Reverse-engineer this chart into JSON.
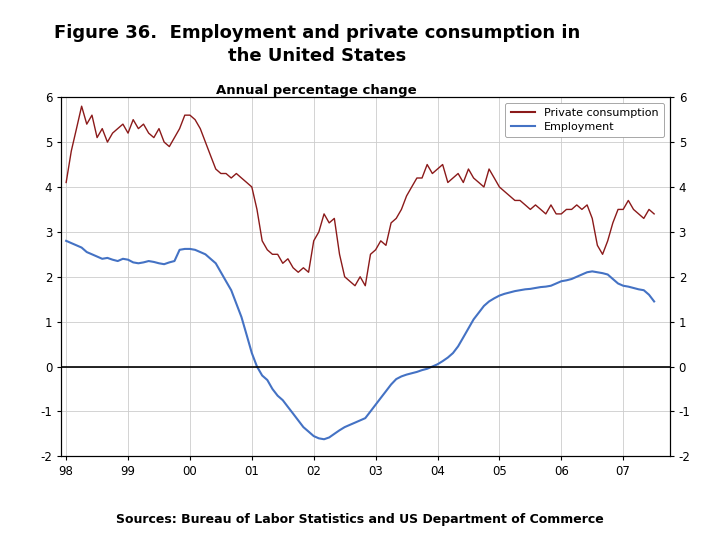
{
  "title_line1": "Figure 36.  Employment and private consumption in",
  "title_line2": "the United States",
  "subtitle": "Annual percentage change",
  "source": "Sources: Bureau of Labor Statistics and US Department of Commerce",
  "legend_labels": [
    "Private consumption",
    "Employment"
  ],
  "line_colors": [
    "#8B1A1A",
    "#4472C4"
  ],
  "ylim": [
    -2,
    6
  ],
  "yticks": [
    -2,
    -1,
    0,
    1,
    2,
    3,
    4,
    5,
    6
  ],
  "xlim_start": 1997.92,
  "xlim_end": 2007.75,
  "xtick_labels": [
    "98",
    "99",
    "00",
    "01",
    "02",
    "03",
    "04",
    "05",
    "06",
    "07"
  ],
  "xtick_positions": [
    1998,
    1999,
    2000,
    2001,
    2002,
    2003,
    2004,
    2005,
    2006,
    2007
  ],
  "background_color": "#FFFFFF",
  "grid_color": "#CCCCCC",
  "footer_bg": "#1F3864",
  "logo_bg": "#1F3864",
  "private_consumption": {
    "t": [
      1998.0,
      1998.083,
      1998.167,
      1998.25,
      1998.333,
      1998.417,
      1998.5,
      1998.583,
      1998.667,
      1998.75,
      1998.833,
      1998.917,
      1999.0,
      1999.083,
      1999.167,
      1999.25,
      1999.333,
      1999.417,
      1999.5,
      1999.583,
      1999.667,
      1999.75,
      1999.833,
      1999.917,
      2000.0,
      2000.083,
      2000.167,
      2000.25,
      2000.333,
      2000.417,
      2000.5,
      2000.583,
      2000.667,
      2000.75,
      2000.833,
      2000.917,
      2001.0,
      2001.083,
      2001.167,
      2001.25,
      2001.333,
      2001.417,
      2001.5,
      2001.583,
      2001.667,
      2001.75,
      2001.833,
      2001.917,
      2002.0,
      2002.083,
      2002.167,
      2002.25,
      2002.333,
      2002.417,
      2002.5,
      2002.583,
      2002.667,
      2002.75,
      2002.833,
      2002.917,
      2003.0,
      2003.083,
      2003.167,
      2003.25,
      2003.333,
      2003.417,
      2003.5,
      2003.583,
      2003.667,
      2003.75,
      2003.833,
      2003.917,
      2004.0,
      2004.083,
      2004.167,
      2004.25,
      2004.333,
      2004.417,
      2004.5,
      2004.583,
      2004.667,
      2004.75,
      2004.833,
      2004.917,
      2005.0,
      2005.083,
      2005.167,
      2005.25,
      2005.333,
      2005.417,
      2005.5,
      2005.583,
      2005.667,
      2005.75,
      2005.833,
      2005.917,
      2006.0,
      2006.083,
      2006.167,
      2006.25,
      2006.333,
      2006.417,
      2006.5,
      2006.583,
      2006.667,
      2006.75,
      2006.833,
      2006.917,
      2007.0,
      2007.083,
      2007.167,
      2007.25,
      2007.333,
      2007.417,
      2007.5
    ],
    "v": [
      4.1,
      4.8,
      5.3,
      5.8,
      5.4,
      5.6,
      5.1,
      5.3,
      5.0,
      5.2,
      5.3,
      5.4,
      5.2,
      5.5,
      5.3,
      5.4,
      5.2,
      5.1,
      5.3,
      5.0,
      4.9,
      5.1,
      5.3,
      5.6,
      5.6,
      5.5,
      5.3,
      5.0,
      4.7,
      4.4,
      4.3,
      4.3,
      4.2,
      4.3,
      4.2,
      4.1,
      4.0,
      3.5,
      2.8,
      2.6,
      2.5,
      2.5,
      2.3,
      2.4,
      2.2,
      2.1,
      2.2,
      2.1,
      2.8,
      3.0,
      3.4,
      3.2,
      3.3,
      2.5,
      2.0,
      1.9,
      1.8,
      2.0,
      1.8,
      2.5,
      2.6,
      2.8,
      2.7,
      3.2,
      3.3,
      3.5,
      3.8,
      4.0,
      4.2,
      4.2,
      4.5,
      4.3,
      4.4,
      4.5,
      4.1,
      4.2,
      4.3,
      4.1,
      4.4,
      4.2,
      4.1,
      4.0,
      4.4,
      4.2,
      4.0,
      3.9,
      3.8,
      3.7,
      3.7,
      3.6,
      3.5,
      3.6,
      3.5,
      3.4,
      3.6,
      3.4,
      3.4,
      3.5,
      3.5,
      3.6,
      3.5,
      3.6,
      3.3,
      2.7,
      2.5,
      2.8,
      3.2,
      3.5,
      3.5,
      3.7,
      3.5,
      3.4,
      3.3,
      3.5,
      3.4
    ]
  },
  "employment": {
    "t": [
      1998.0,
      1998.083,
      1998.167,
      1998.25,
      1998.333,
      1998.417,
      1998.5,
      1998.583,
      1998.667,
      1998.75,
      1998.833,
      1998.917,
      1999.0,
      1999.083,
      1999.167,
      1999.25,
      1999.333,
      1999.417,
      1999.5,
      1999.583,
      1999.667,
      1999.75,
      1999.833,
      1999.917,
      2000.0,
      2000.083,
      2000.167,
      2000.25,
      2000.333,
      2000.417,
      2000.5,
      2000.583,
      2000.667,
      2000.75,
      2000.833,
      2000.917,
      2001.0,
      2001.083,
      2001.167,
      2001.25,
      2001.333,
      2001.417,
      2001.5,
      2001.583,
      2001.667,
      2001.75,
      2001.833,
      2001.917,
      2002.0,
      2002.083,
      2002.167,
      2002.25,
      2002.333,
      2002.417,
      2002.5,
      2002.583,
      2002.667,
      2002.75,
      2002.833,
      2002.917,
      2003.0,
      2003.083,
      2003.167,
      2003.25,
      2003.333,
      2003.417,
      2003.5,
      2003.583,
      2003.667,
      2003.75,
      2003.833,
      2003.917,
      2004.0,
      2004.083,
      2004.167,
      2004.25,
      2004.333,
      2004.417,
      2004.5,
      2004.583,
      2004.667,
      2004.75,
      2004.833,
      2004.917,
      2005.0,
      2005.083,
      2005.167,
      2005.25,
      2005.333,
      2005.417,
      2005.5,
      2005.583,
      2005.667,
      2005.75,
      2005.833,
      2005.917,
      2006.0,
      2006.083,
      2006.167,
      2006.25,
      2006.333,
      2006.417,
      2006.5,
      2006.583,
      2006.667,
      2006.75,
      2006.833,
      2006.917,
      2007.0,
      2007.083,
      2007.167,
      2007.25,
      2007.333,
      2007.417,
      2007.5
    ],
    "v": [
      2.8,
      2.75,
      2.7,
      2.65,
      2.55,
      2.5,
      2.45,
      2.4,
      2.42,
      2.38,
      2.35,
      2.4,
      2.38,
      2.32,
      2.3,
      2.32,
      2.35,
      2.33,
      2.3,
      2.28,
      2.32,
      2.35,
      2.6,
      2.62,
      2.62,
      2.6,
      2.55,
      2.5,
      2.4,
      2.3,
      2.1,
      1.9,
      1.7,
      1.4,
      1.1,
      0.7,
      0.3,
      0.0,
      -0.2,
      -0.3,
      -0.5,
      -0.65,
      -0.75,
      -0.9,
      -1.05,
      -1.2,
      -1.35,
      -1.45,
      -1.55,
      -1.6,
      -1.62,
      -1.58,
      -1.5,
      -1.42,
      -1.35,
      -1.3,
      -1.25,
      -1.2,
      -1.15,
      -1.0,
      -0.85,
      -0.7,
      -0.55,
      -0.4,
      -0.28,
      -0.22,
      -0.18,
      -0.15,
      -0.12,
      -0.08,
      -0.05,
      0.0,
      0.05,
      0.12,
      0.2,
      0.3,
      0.45,
      0.65,
      0.85,
      1.05,
      1.2,
      1.35,
      1.45,
      1.52,
      1.58,
      1.62,
      1.65,
      1.68,
      1.7,
      1.72,
      1.73,
      1.75,
      1.77,
      1.78,
      1.8,
      1.85,
      1.9,
      1.92,
      1.95,
      2.0,
      2.05,
      2.1,
      2.12,
      2.1,
      2.08,
      2.05,
      1.95,
      1.85,
      1.8,
      1.78,
      1.75,
      1.72,
      1.7,
      1.6,
      1.45
    ]
  }
}
